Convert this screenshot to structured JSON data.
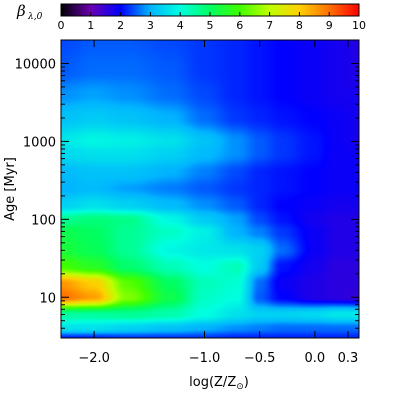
{
  "chart_data": {
    "type": "heatmap",
    "colorbar": {
      "title_main": "β",
      "title_sub": "λ,0",
      "ticks": [
        "0",
        "1",
        "2",
        "3",
        "4",
        "5",
        "6",
        "7",
        "8",
        "9",
        "10"
      ],
      "range": [
        0,
        10
      ],
      "colormap": [
        {
          "v": 0,
          "c": "#000000"
        },
        {
          "v": 1,
          "c": "#6a00b0"
        },
        {
          "v": 2,
          "c": "#0000ff"
        },
        {
          "v": 3,
          "c": "#00b4ff"
        },
        {
          "v": 4,
          "c": "#00ffe0"
        },
        {
          "v": 5,
          "c": "#00ff60"
        },
        {
          "v": 6,
          "c": "#40ff00"
        },
        {
          "v": 7,
          "c": "#c0ff00"
        },
        {
          "v": 8,
          "c": "#ffd000"
        },
        {
          "v": 9,
          "c": "#ff7000"
        },
        {
          "v": 10,
          "c": "#ff0000"
        }
      ]
    },
    "xaxis": {
      "label": "log(Z/Z",
      "label_sun": "⊙",
      "label_close": ")",
      "ticks": [
        {
          "value": -2.0,
          "label": "−2.0"
        },
        {
          "value": -1.0,
          "label": "−1.0"
        },
        {
          "value": -0.5,
          "label": "−0.5"
        },
        {
          "value": 0.0,
          "label": "0.0"
        },
        {
          "value": 0.3,
          "label": "0.3"
        }
      ],
      "range": [
        -2.3,
        0.4
      ]
    },
    "yaxis": {
      "label": "Age [Myr]",
      "scale": "log",
      "ticks": [
        {
          "value": 10,
          "label": "10"
        },
        {
          "value": 100,
          "label": "100"
        },
        {
          "value": 1000,
          "label": "1000"
        },
        {
          "value": 10000,
          "label": "10000"
        }
      ],
      "range": [
        3,
        20000
      ]
    },
    "grid_x": [
      -2.3,
      -2.0,
      -1.7,
      -1.3,
      -1.0,
      -0.7,
      -0.5,
      -0.3,
      0.0,
      0.2,
      0.4
    ],
    "grid_y": [
      3,
      4,
      6,
      10,
      15,
      25,
      40,
      70,
      100,
      150,
      250,
      400,
      700,
      1000,
      2000,
      4000,
      8000,
      20000
    ],
    "z": [
      [
        2.2,
        2.2,
        2.3,
        2.3,
        2.3,
        2.2,
        2.2,
        2.2,
        2.2,
        2.2,
        2.2
      ],
      [
        3.6,
        3.6,
        3.4,
        3.2,
        3.0,
        2.8,
        2.7,
        2.6,
        2.6,
        2.6,
        2.6
      ],
      [
        4.5,
        4.5,
        4.6,
        4.4,
        4.0,
        3.6,
        3.4,
        3.4,
        3.5,
        3.7,
        3.7
      ],
      [
        9.0,
        8.5,
        6.5,
        5.2,
        4.2,
        4.0,
        2.5,
        2.0,
        1.7,
        1.6,
        1.5
      ],
      [
        8.6,
        8.0,
        6.2,
        5.0,
        4.3,
        4.1,
        2.6,
        1.9,
        1.7,
        1.6,
        1.6
      ],
      [
        6.0,
        5.6,
        4.9,
        4.3,
        4.0,
        4.3,
        3.3,
        2.1,
        1.8,
        1.6,
        1.6
      ],
      [
        5.4,
        5.1,
        4.6,
        3.9,
        3.7,
        3.6,
        3.4,
        2.6,
        1.9,
        1.7,
        1.7
      ],
      [
        5.2,
        5.0,
        4.6,
        4.2,
        3.8,
        3.0,
        2.7,
        2.3,
        1.9,
        1.7,
        1.7
      ],
      [
        4.6,
        4.8,
        4.7,
        3.9,
        3.3,
        2.9,
        2.4,
        2.1,
        1.8,
        1.7,
        1.7
      ],
      [
        3.4,
        3.6,
        3.4,
        3.1,
        2.8,
        2.5,
        2.2,
        2.0,
        1.9,
        1.8,
        1.8
      ],
      [
        3.0,
        3.1,
        2.9,
        2.7,
        2.5,
        2.3,
        2.2,
        2.1,
        2.0,
        1.9,
        1.9
      ],
      [
        3.1,
        3.2,
        3.2,
        3.0,
        2.7,
        2.4,
        2.2,
        2.1,
        2.0,
        1.9,
        1.9
      ],
      [
        3.5,
        3.6,
        3.6,
        3.4,
        3.1,
        2.8,
        2.5,
        2.3,
        2.1,
        1.9,
        1.9
      ],
      [
        3.7,
        3.9,
        3.8,
        3.6,
        3.2,
        2.8,
        2.5,
        2.3,
        2.1,
        1.9,
        1.8
      ],
      [
        3.2,
        3.3,
        3.2,
        3.0,
        2.6,
        2.3,
        2.2,
        2.1,
        2.0,
        1.9,
        1.8
      ],
      [
        2.8,
        2.9,
        2.8,
        2.6,
        2.4,
        2.2,
        2.1,
        2.0,
        1.9,
        1.8,
        1.8
      ],
      [
        2.5,
        2.6,
        2.6,
        2.5,
        2.3,
        2.2,
        2.1,
        2.0,
        1.9,
        1.8,
        1.7
      ],
      [
        2.4,
        2.5,
        2.5,
        2.4,
        2.3,
        2.2,
        2.1,
        2.0,
        1.9,
        1.8,
        1.7
      ]
    ]
  }
}
